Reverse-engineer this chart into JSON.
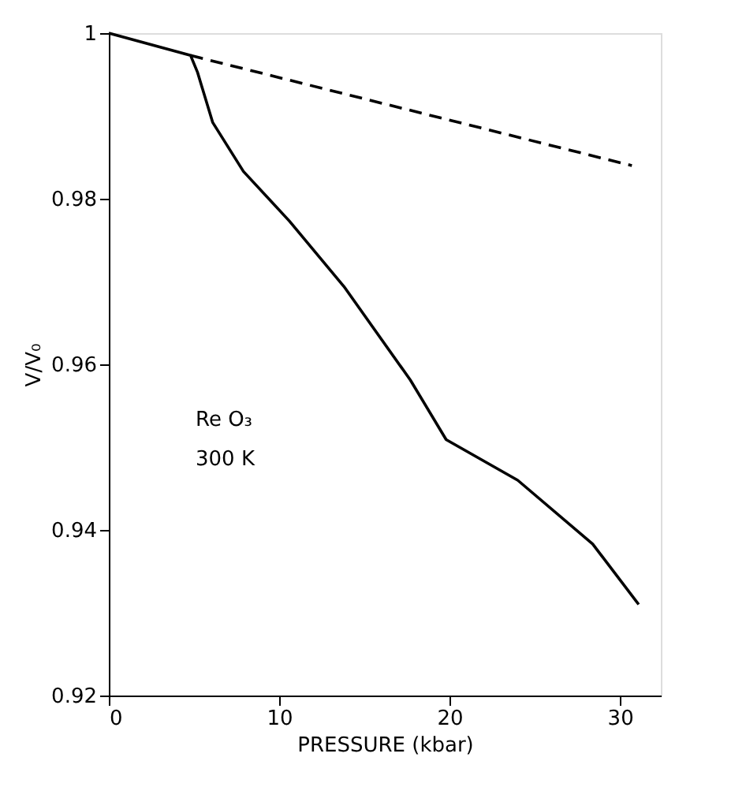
{
  "chart_data": {
    "type": "line",
    "xlabel": "PRESSURE (kbar)",
    "ylabel": "V/V₀",
    "xlim": [
      0,
      32.4
    ],
    "xticks": [
      0,
      10,
      20,
      30
    ],
    "ylim": [
      0.92,
      1
    ],
    "yticks": [
      0.92,
      0.94,
      0.96,
      0.98,
      1
    ],
    "grid": false,
    "series": [
      {
        "color": "#000000",
        "line_style": "solid",
        "x": [
          0,
          4.8,
          5.2,
          6.1,
          7.9,
          10.6,
          13.8,
          17.7,
          19.8,
          24.0,
          28.4,
          31.1
        ],
        "values": [
          1,
          0.9973,
          0.9953,
          0.9892,
          0.9833,
          0.9773,
          0.9694,
          0.9581,
          0.9509,
          0.946,
          0.9383,
          0.931
        ]
      },
      {
        "color": "#000000",
        "line_style": "dashed",
        "x": [
          4.8,
          30.7
        ],
        "values": [
          0.9973,
          0.984
        ]
      }
    ],
    "annotations": [
      "Re O₃",
      "300 K"
    ]
  }
}
